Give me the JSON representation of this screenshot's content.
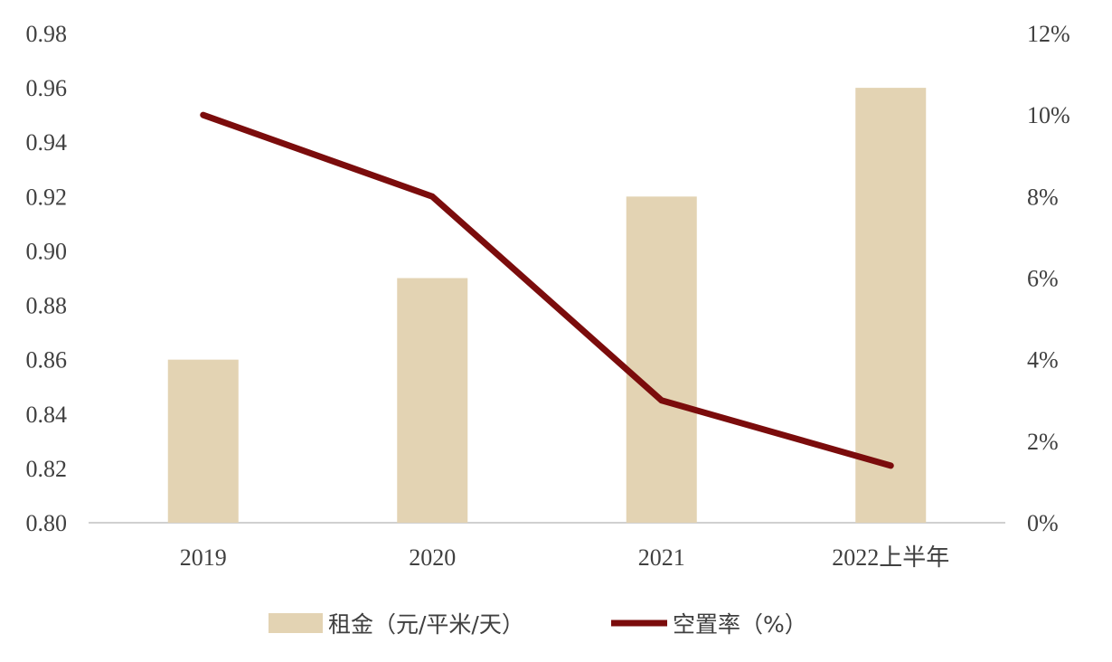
{
  "chart_data": {
    "type": "bar+line",
    "categories": [
      "2019",
      "2020",
      "2021",
      "2022上半年"
    ],
    "series": [
      {
        "name": "租金（元/平米/天）",
        "type": "bar",
        "axis": "left",
        "values": [
          0.86,
          0.89,
          0.92,
          0.96
        ],
        "color": "#e3d3b3"
      },
      {
        "name": "空置率（%）",
        "type": "line",
        "axis": "right",
        "values": [
          10.0,
          8.0,
          3.0,
          1.4
        ],
        "color": "#7b0c0c"
      }
    ],
    "left_axis": {
      "ylim": [
        0.8,
        0.98
      ],
      "ticks": [
        "0.80",
        "0.82",
        "0.84",
        "0.86",
        "0.88",
        "0.90",
        "0.92",
        "0.94",
        "0.96",
        "0.98"
      ]
    },
    "right_axis": {
      "ylim": [
        0,
        12
      ],
      "ticks": [
        "0%",
        "2%",
        "4%",
        "6%",
        "8%",
        "10%",
        "12%"
      ]
    },
    "legend": {
      "position": "bottom",
      "items": [
        "租金（元/平米/天）",
        "空置率（%）"
      ]
    },
    "grid": false
  }
}
